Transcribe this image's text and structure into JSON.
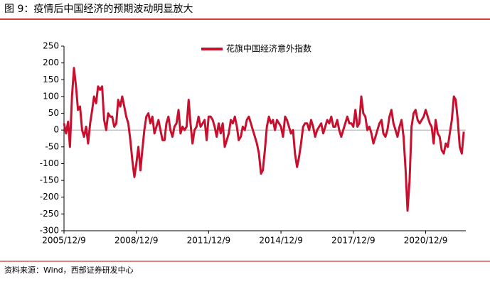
{
  "chart_data": {
    "type": "line",
    "title": "图 9：疫情后中国经济的预期波动明显放大",
    "source": "资料来源：Wind，西部证券研发中心",
    "x": [
      "2005/12/9",
      "2006/1/9",
      "2006/2/9",
      "2006/3/9",
      "2006/4/9",
      "2006/5/9",
      "2006/6/9",
      "2006/7/9",
      "2006/8/9",
      "2006/9/9",
      "2006/10/9",
      "2006/11/9",
      "2006/12/9",
      "2007/1/9",
      "2007/2/9",
      "2007/3/9",
      "2007/4/9",
      "2007/5/9",
      "2007/6/9",
      "2007/7/9",
      "2007/8/9",
      "2007/9/9",
      "2007/10/9",
      "2007/11/9",
      "2007/12/9",
      "2008/1/9",
      "2008/2/9",
      "2008/3/9",
      "2008/4/9",
      "2008/5/9",
      "2008/6/9",
      "2008/7/9",
      "2008/8/9",
      "2008/9/9",
      "2008/10/9",
      "2008/11/9",
      "2008/12/9",
      "2009/1/9",
      "2009/2/9",
      "2009/3/9",
      "2009/4/9",
      "2009/5/9",
      "2009/6/9",
      "2009/7/9",
      "2009/8/9",
      "2009/9/9",
      "2009/10/9",
      "2009/11/9",
      "2009/12/9",
      "2010/1/9",
      "2010/2/9",
      "2010/3/9",
      "2010/4/9",
      "2010/5/9",
      "2010/6/9",
      "2010/7/9",
      "2010/8/9",
      "2010/9/9",
      "2010/10/9",
      "2010/11/9",
      "2010/12/9",
      "2011/1/9",
      "2011/2/9",
      "2011/3/9",
      "2011/4/9",
      "2011/5/9",
      "2011/6/9",
      "2011/7/9",
      "2011/8/9",
      "2011/9/9",
      "2011/10/9",
      "2011/11/9",
      "2011/12/9",
      "2012/1/9",
      "2012/2/9",
      "2012/3/9",
      "2012/4/9",
      "2012/5/9",
      "2012/6/9",
      "2012/7/9",
      "2012/8/9",
      "2012/9/9",
      "2012/10/9",
      "2012/11/9",
      "2012/12/9",
      "2013/1/9",
      "2013/2/9",
      "2013/3/9",
      "2013/4/9",
      "2013/5/9",
      "2013/6/9",
      "2013/7/9",
      "2013/8/9",
      "2013/9/9",
      "2013/10/9",
      "2013/11/9",
      "2013/12/9",
      "2014/1/9",
      "2014/2/9",
      "2014/3/9",
      "2014/4/9",
      "2014/5/9",
      "2014/6/9",
      "2014/7/9",
      "2014/8/9",
      "2014/9/9",
      "2014/10/9",
      "2014/11/9",
      "2014/12/9",
      "2015/1/9",
      "2015/2/9",
      "2015/3/9",
      "2015/4/9",
      "2015/5/9",
      "2015/6/9",
      "2015/7/9",
      "2015/8/9",
      "2015/9/9",
      "2015/10/9",
      "2015/11/9",
      "2015/12/9",
      "2016/1/9",
      "2016/2/9",
      "2016/3/9",
      "2016/4/9",
      "2016/5/9",
      "2016/6/9",
      "2016/7/9",
      "2016/8/9",
      "2016/9/9",
      "2016/10/9",
      "2016/11/9",
      "2016/12/9",
      "2017/1/9",
      "2017/2/9",
      "2017/3/9",
      "2017/4/9",
      "2017/5/9",
      "2017/6/9",
      "2017/7/9",
      "2017/8/9",
      "2017/9/9",
      "2017/10/9",
      "2017/11/9",
      "2017/12/9",
      "2018/1/9",
      "2018/2/9",
      "2018/3/9",
      "2018/4/9",
      "2018/5/9",
      "2018/6/9",
      "2018/7/9",
      "2018/8/9",
      "2018/9/9",
      "2018/10/9",
      "2018/11/9",
      "2018/12/9",
      "2019/1/9",
      "2019/2/9",
      "2019/3/9",
      "2019/4/9",
      "2019/5/9",
      "2019/6/9",
      "2019/7/9",
      "2019/8/9",
      "2019/9/9",
      "2019/10/9",
      "2019/11/9",
      "2019/12/9",
      "2020/1/9",
      "2020/2/9",
      "2020/3/9",
      "2020/4/9",
      "2020/5/9",
      "2020/6/9",
      "2020/7/9",
      "2020/8/9",
      "2020/9/9",
      "2020/10/9",
      "2020/11/9",
      "2020/12/9",
      "2021/1/9",
      "2021/2/9",
      "2021/3/9",
      "2021/4/9",
      "2021/5/9",
      "2021/6/9",
      "2021/7/9",
      "2021/8/9",
      "2021/9/9",
      "2021/10/9",
      "2021/11/9",
      "2021/12/9",
      "2022/1/9",
      "2022/2/9",
      "2022/3/9",
      "2022/4/9",
      "2022/5/9",
      "2022/6/9",
      "2022/7/9"
    ],
    "series": [
      {
        "name": "花旗中国经济意外指数",
        "color": "#c8102e",
        "values": [
          20,
          -10,
          25,
          -50,
          100,
          185,
          130,
          60,
          70,
          0,
          -20,
          10,
          -40,
          20,
          60,
          100,
          80,
          130,
          120,
          130,
          30,
          0,
          50,
          40,
          40,
          10,
          20,
          90,
          70,
          100,
          70,
          40,
          20,
          -30,
          -90,
          -140,
          -100,
          -50,
          -120,
          -60,
          0,
          40,
          50,
          20,
          40,
          -10,
          10,
          30,
          0,
          -30,
          -30,
          20,
          40,
          0,
          -20,
          10,
          20,
          60,
          -10,
          10,
          0,
          10,
          90,
          20,
          -40,
          0,
          10,
          40,
          10,
          20,
          30,
          -30,
          40,
          40,
          30,
          10,
          -20,
          20,
          -10,
          20,
          -50,
          -30,
          -10,
          30,
          20,
          40,
          10,
          -30,
          -20,
          10,
          0,
          30,
          40,
          20,
          0,
          -20,
          -40,
          -70,
          -130,
          -120,
          -60,
          10,
          40,
          20,
          30,
          0,
          30,
          20,
          10,
          -20,
          40,
          30,
          10,
          -10,
          0,
          -70,
          -110,
          -80,
          -40,
          10,
          20,
          20,
          0,
          30,
          10,
          -20,
          0,
          10,
          20,
          -10,
          10,
          30,
          20,
          40,
          10,
          10,
          30,
          0,
          -20,
          0,
          20,
          40,
          20,
          20,
          10,
          60,
          10,
          20,
          100,
          50,
          40,
          0,
          10,
          -10,
          -40,
          -20,
          0,
          20,
          30,
          -10,
          -20,
          0,
          40,
          60,
          20,
          0,
          -20,
          10,
          30,
          -20,
          -120,
          -240,
          -150,
          10,
          50,
          60,
          30,
          20,
          30,
          40,
          60,
          40,
          20,
          10,
          -40,
          30,
          -10,
          -20,
          -60,
          -70,
          -40,
          -50,
          -10,
          30,
          100,
          90,
          30,
          -50,
          -70,
          -5
        ]
      }
    ],
    "xlim": [
      "2005/12/9",
      "2022/8/9"
    ],
    "xticks": [
      "2005/12/9",
      "2008/12/9",
      "2011/12/9",
      "2014/12/9",
      "2017/12/9",
      "2020/12/9"
    ],
    "ylim": [
      -300,
      250
    ],
    "yticks": [
      -300,
      -250,
      -200,
      -150,
      -100,
      -50,
      0,
      50,
      100,
      150,
      200,
      250
    ],
    "legend": "top"
  }
}
